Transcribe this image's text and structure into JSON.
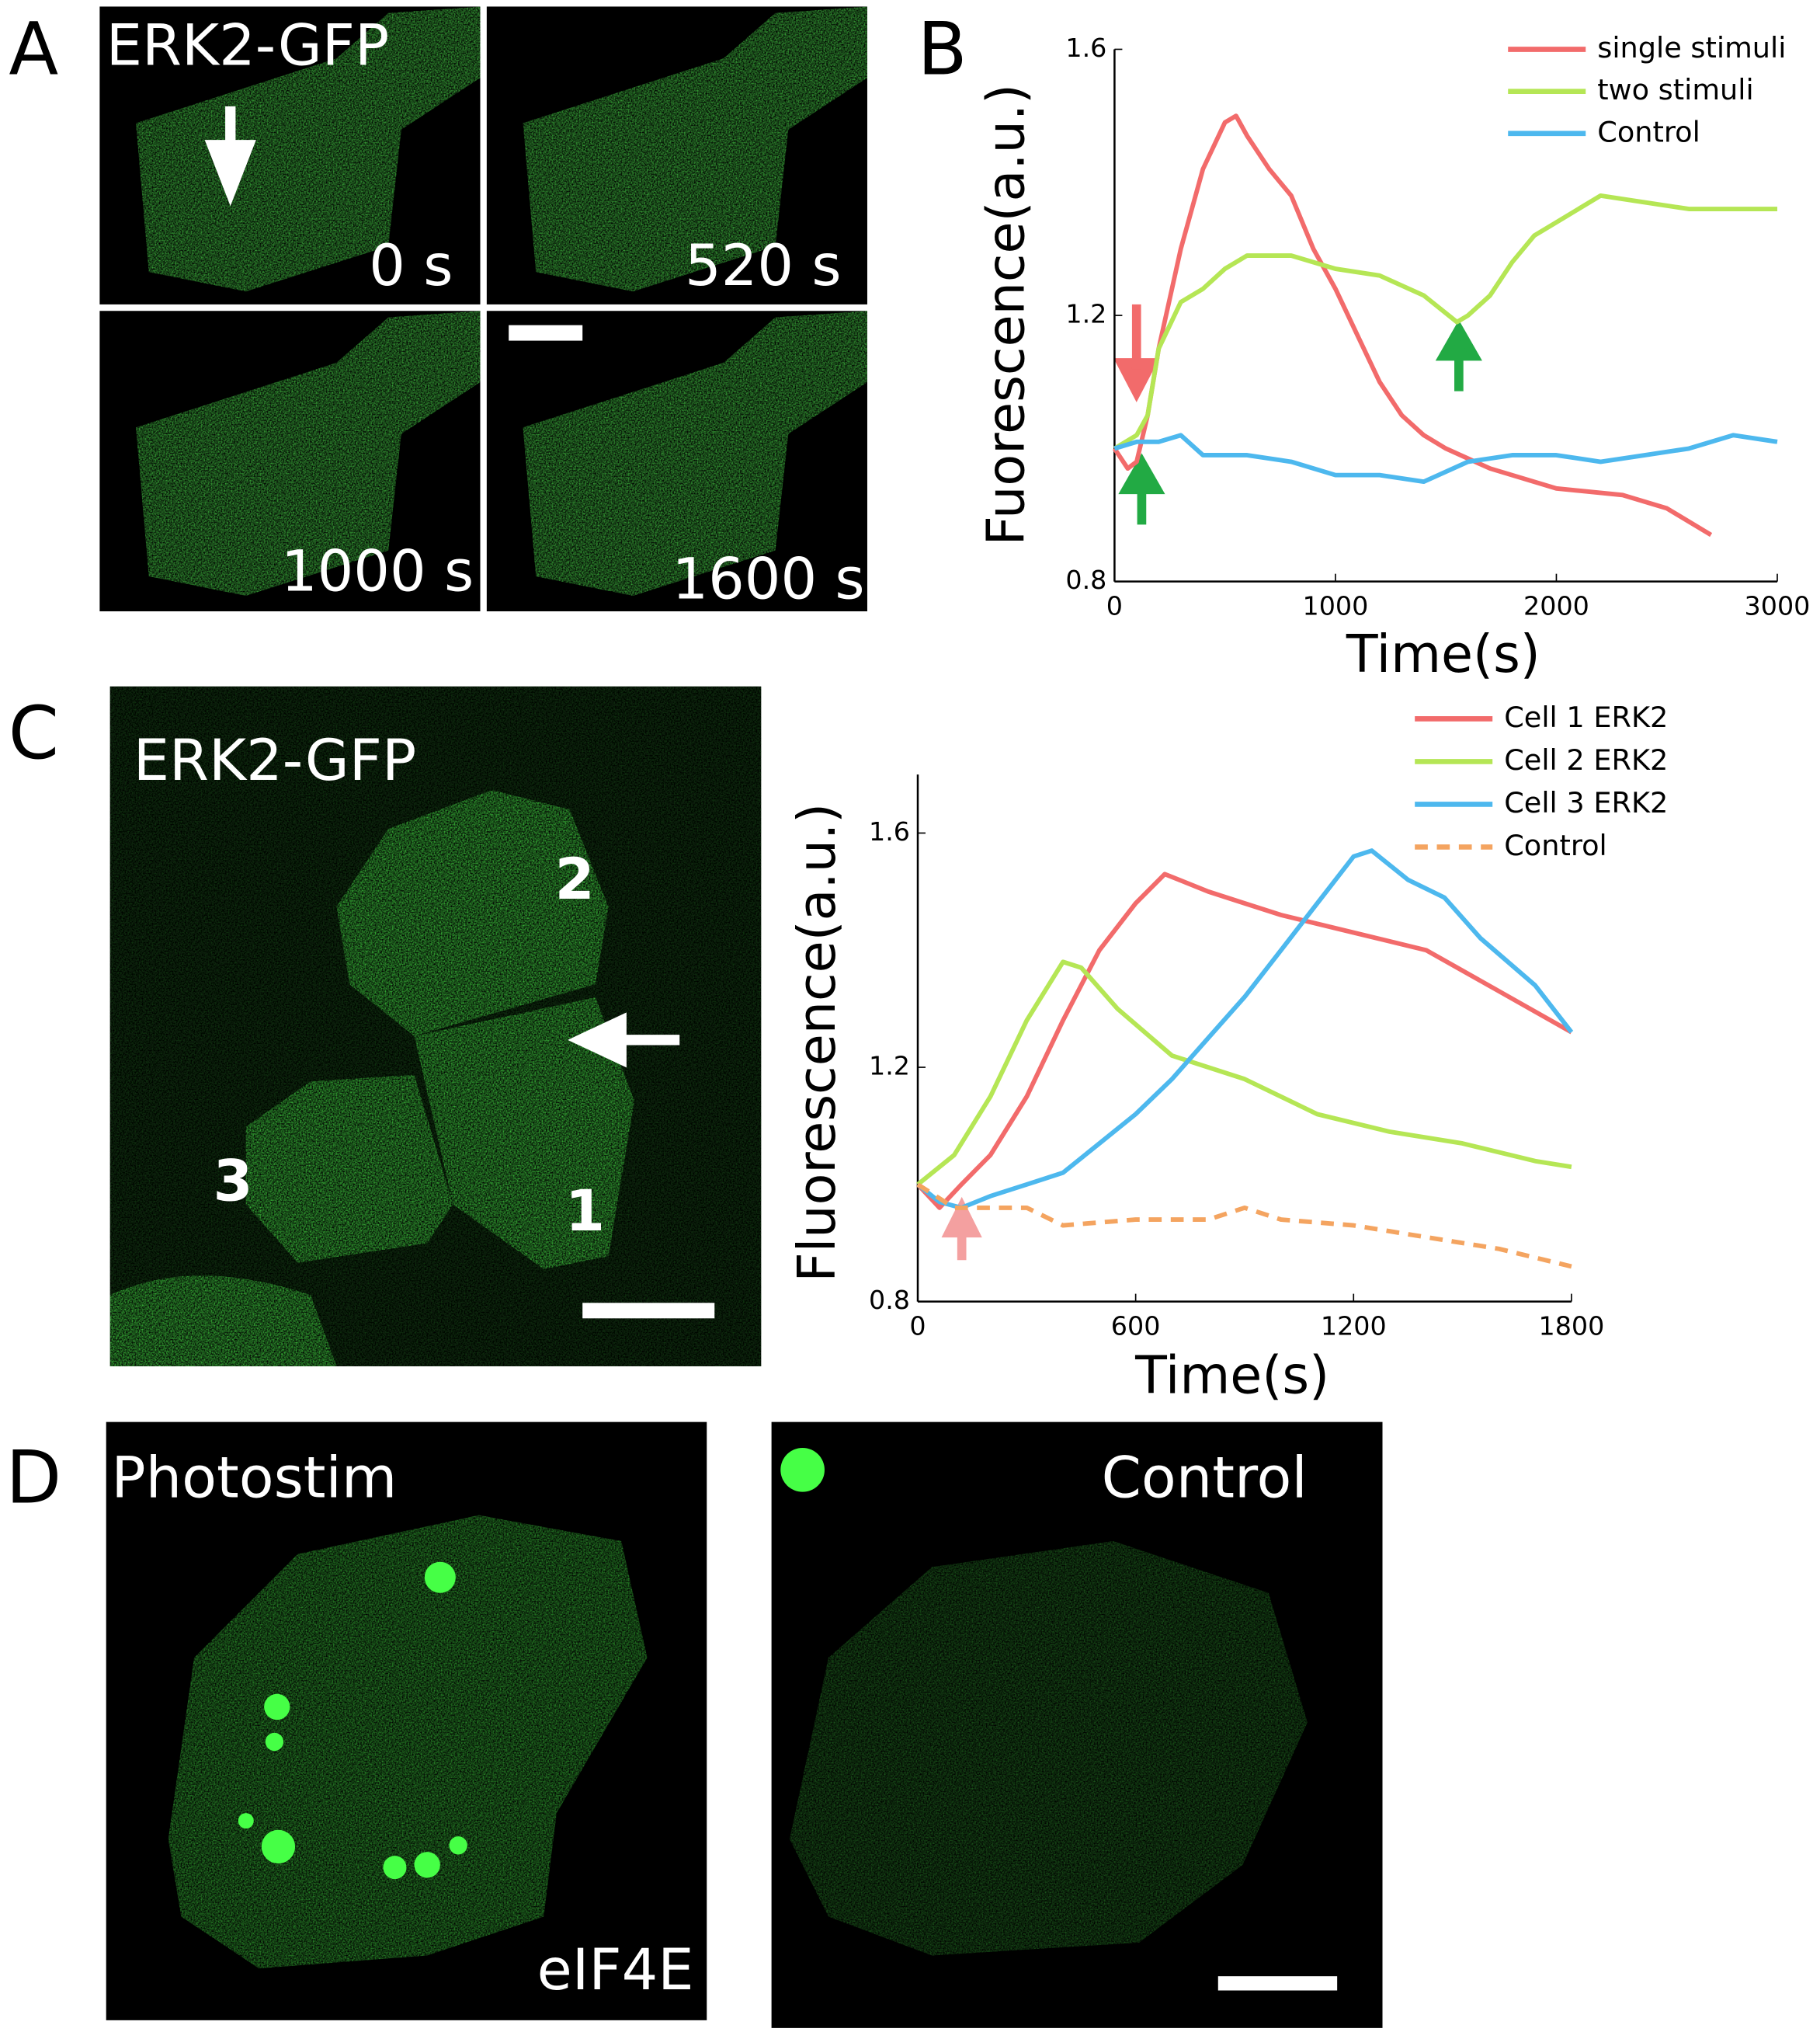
{
  "panels": {
    "labels": [
      "A",
      "B",
      "C",
      "D"
    ],
    "a": {
      "marker": "ERK2-GFP",
      "times": [
        "0 s",
        "520 s",
        "1000 s",
        "1600 s"
      ]
    },
    "c": {
      "marker": "ERK2-GFP",
      "cells": [
        "2",
        "3",
        "1"
      ]
    },
    "d": {
      "left": "Photostim",
      "right": "Control",
      "protein": "eIF4E"
    }
  },
  "chart_data": [
    {
      "type": "line",
      "xlabel": "Time(s)",
      "ylabel": "Fuorescence(a.u.)",
      "xlim": [
        0,
        3000
      ],
      "xticks": [
        0,
        1000,
        2000,
        3000
      ],
      "ylim": [
        0.8,
        1.6
      ],
      "yticks": [
        0.8,
        1.2,
        1.6
      ],
      "legend": "upper right",
      "series": [
        {
          "name": "single stimuli",
          "color": "#f26b6b",
          "x": [
            0,
            60,
            100,
            150,
            200,
            300,
            400,
            500,
            550,
            600,
            700,
            800,
            900,
            1000,
            1100,
            1200,
            1300,
            1400,
            1500,
            1700,
            2000,
            2300,
            2500,
            2700
          ],
          "values": [
            1.0,
            0.97,
            0.98,
            1.05,
            1.15,
            1.3,
            1.42,
            1.49,
            1.5,
            1.47,
            1.42,
            1.38,
            1.3,
            1.24,
            1.17,
            1.1,
            1.05,
            1.02,
            1.0,
            0.97,
            0.94,
            0.93,
            0.91,
            0.87
          ]
        },
        {
          "name": "two stimuli",
          "color": "#b5e655",
          "x": [
            0,
            100,
            150,
            200,
            300,
            400,
            500,
            600,
            800,
            1000,
            1200,
            1400,
            1550,
            1600,
            1700,
            1800,
            1900,
            2000,
            2200,
            2400,
            2600,
            3000
          ],
          "values": [
            1.0,
            1.02,
            1.05,
            1.15,
            1.22,
            1.24,
            1.27,
            1.29,
            1.29,
            1.27,
            1.26,
            1.23,
            1.19,
            1.2,
            1.23,
            1.28,
            1.32,
            1.34,
            1.38,
            1.37,
            1.36,
            1.36
          ]
        },
        {
          "name": "Control",
          "color": "#4db8ee",
          "x": [
            0,
            100,
            200,
            300,
            400,
            600,
            800,
            1000,
            1200,
            1400,
            1600,
            1800,
            2000,
            2200,
            2400,
            2600,
            2800,
            3000
          ],
          "values": [
            1.0,
            1.01,
            1.01,
            1.02,
            0.99,
            0.99,
            0.98,
            0.96,
            0.96,
            0.95,
            0.98,
            0.99,
            0.99,
            0.98,
            0.99,
            1.0,
            1.02,
            1.01
          ]
        }
      ]
    },
    {
      "type": "line",
      "xlabel": "Time(s)",
      "ylabel": "Fluorescence(a.u.)",
      "xlim": [
        0,
        1800
      ],
      "xticks": [
        0,
        600,
        1200,
        1800
      ],
      "ylim": [
        0.8,
        1.7
      ],
      "yticks": [
        0.8,
        1.2,
        1.6
      ],
      "legend": "upper right",
      "series": [
        {
          "name": "Cell 1 ERK2",
          "color": "#f26b6b",
          "x": [
            0,
            60,
            120,
            200,
            300,
            400,
            500,
            600,
            680,
            800,
            900,
            1000,
            1200,
            1400,
            1600,
            1800
          ],
          "values": [
            1.0,
            0.96,
            1.0,
            1.05,
            1.15,
            1.28,
            1.4,
            1.48,
            1.53,
            1.5,
            1.48,
            1.46,
            1.43,
            1.4,
            1.33,
            1.26
          ]
        },
        {
          "name": "Cell 2 ERK2",
          "color": "#b5e655",
          "x": [
            0,
            100,
            200,
            300,
            400,
            450,
            550,
            700,
            900,
            1100,
            1300,
            1500,
            1700,
            1800
          ],
          "values": [
            1.0,
            1.05,
            1.15,
            1.28,
            1.38,
            1.37,
            1.3,
            1.22,
            1.18,
            1.12,
            1.09,
            1.07,
            1.04,
            1.03
          ]
        },
        {
          "name": "Cell 3 ERK2",
          "color": "#4db8ee",
          "x": [
            0,
            60,
            120,
            200,
            300,
            400,
            500,
            600,
            700,
            800,
            900,
            1000,
            1100,
            1200,
            1250,
            1350,
            1450,
            1550,
            1700,
            1800
          ],
          "values": [
            1.0,
            0.97,
            0.96,
            0.98,
            1.0,
            1.02,
            1.07,
            1.12,
            1.18,
            1.25,
            1.32,
            1.4,
            1.48,
            1.56,
            1.57,
            1.52,
            1.49,
            1.42,
            1.34,
            1.26
          ]
        },
        {
          "name": "Control",
          "color": "#f4a460",
          "linestyle": "dashed",
          "x": [
            0,
            100,
            200,
            300,
            400,
            600,
            800,
            900,
            1000,
            1200,
            1400,
            1600,
            1800
          ],
          "values": [
            1.0,
            0.96,
            0.96,
            0.96,
            0.93,
            0.94,
            0.94,
            0.96,
            0.94,
            0.93,
            0.91,
            0.89,
            0.86
          ]
        }
      ]
    }
  ]
}
